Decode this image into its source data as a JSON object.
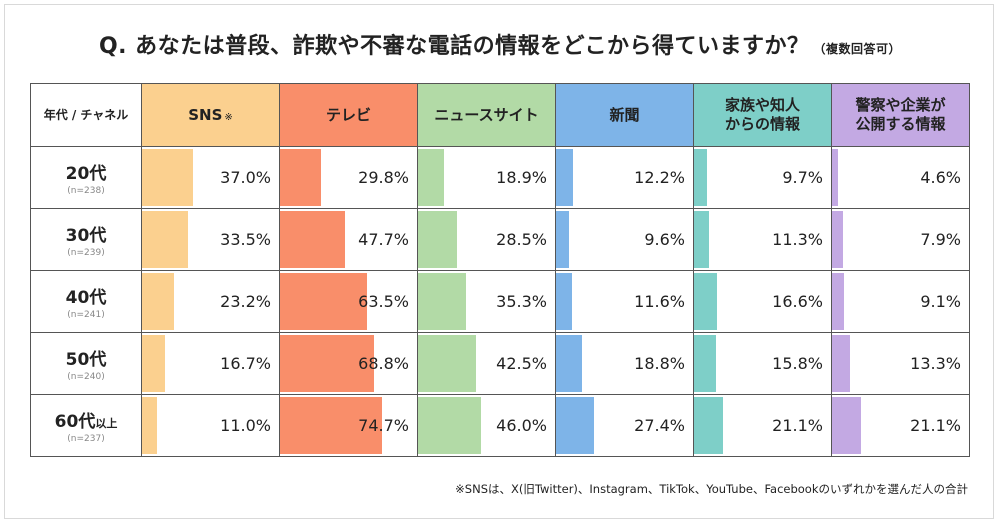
{
  "title": "Q. あなたは普段、詐欺や不審な電話の情報をどこから得ていますか？",
  "title_note": "（複数回答可）",
  "corner_label": "年代 / チャネル",
  "footnote": "※SNSは、X(旧Twitter)、Instagram、TikTok、YouTube、Facebookのいずれかを選んだ人の合計",
  "chart_data": {
    "type": "table",
    "columns": [
      {
        "name": "SNS",
        "mark": "※",
        "header_color": "#fbd08f",
        "bar_color": "#fbd08f"
      },
      {
        "name": "テレビ",
        "mark": "",
        "header_color": "#f98e6a",
        "bar_color": "#f98e6a"
      },
      {
        "name": "ニュースサイト",
        "mark": "",
        "header_color": "#b2daa6",
        "bar_color": "#b2daa6"
      },
      {
        "name": "新聞",
        "mark": "",
        "header_color": "#7eb4e8",
        "bar_color": "#7eb4e8"
      },
      {
        "name": "家族や知人\nからの情報",
        "mark": "",
        "header_color": "#7ecfc8",
        "bar_color": "#7ecfc8"
      },
      {
        "name": "警察や企業が\n公開する情報",
        "mark": "",
        "header_color": "#c3a9e3",
        "bar_color": "#c3a9e3"
      }
    ],
    "rows": [
      {
        "age": "20代",
        "suffix": "",
        "n": "(n=238)",
        "values": [
          37.0,
          29.8,
          18.9,
          12.2,
          9.7,
          4.6
        ],
        "labels": [
          "37.0%",
          "29.8%",
          "18.9%",
          "12.2%",
          "9.7%",
          "4.6%"
        ]
      },
      {
        "age": "30代",
        "suffix": "",
        "n": "(n=239)",
        "values": [
          33.5,
          47.7,
          28.5,
          9.6,
          11.3,
          7.9
        ],
        "labels": [
          "33.5%",
          "47.7%",
          "28.5%",
          "9.6%",
          "11.3%",
          "7.9%"
        ]
      },
      {
        "age": "40代",
        "suffix": "",
        "n": "(n=241)",
        "values": [
          23.2,
          63.5,
          35.3,
          11.6,
          16.6,
          9.1
        ],
        "labels": [
          "23.2%",
          "63.5%",
          "35.3%",
          "11.6%",
          "16.6%",
          "9.1%"
        ]
      },
      {
        "age": "50代",
        "suffix": "",
        "n": "(n=240)",
        "values": [
          16.7,
          68.8,
          42.5,
          18.8,
          15.8,
          13.3
        ],
        "labels": [
          "16.7%",
          "68.8%",
          "42.5%",
          "18.8%",
          "15.8%",
          "13.3%"
        ]
      },
      {
        "age": "60代",
        "suffix": "以上",
        "n": "(n=237)",
        "values": [
          11.0,
          74.7,
          46.0,
          27.4,
          21.1,
          21.1
        ],
        "labels": [
          "11.0%",
          "74.7%",
          "46.0%",
          "27.4%",
          "21.1%",
          "21.1%"
        ]
      }
    ],
    "value_max": 100
  }
}
